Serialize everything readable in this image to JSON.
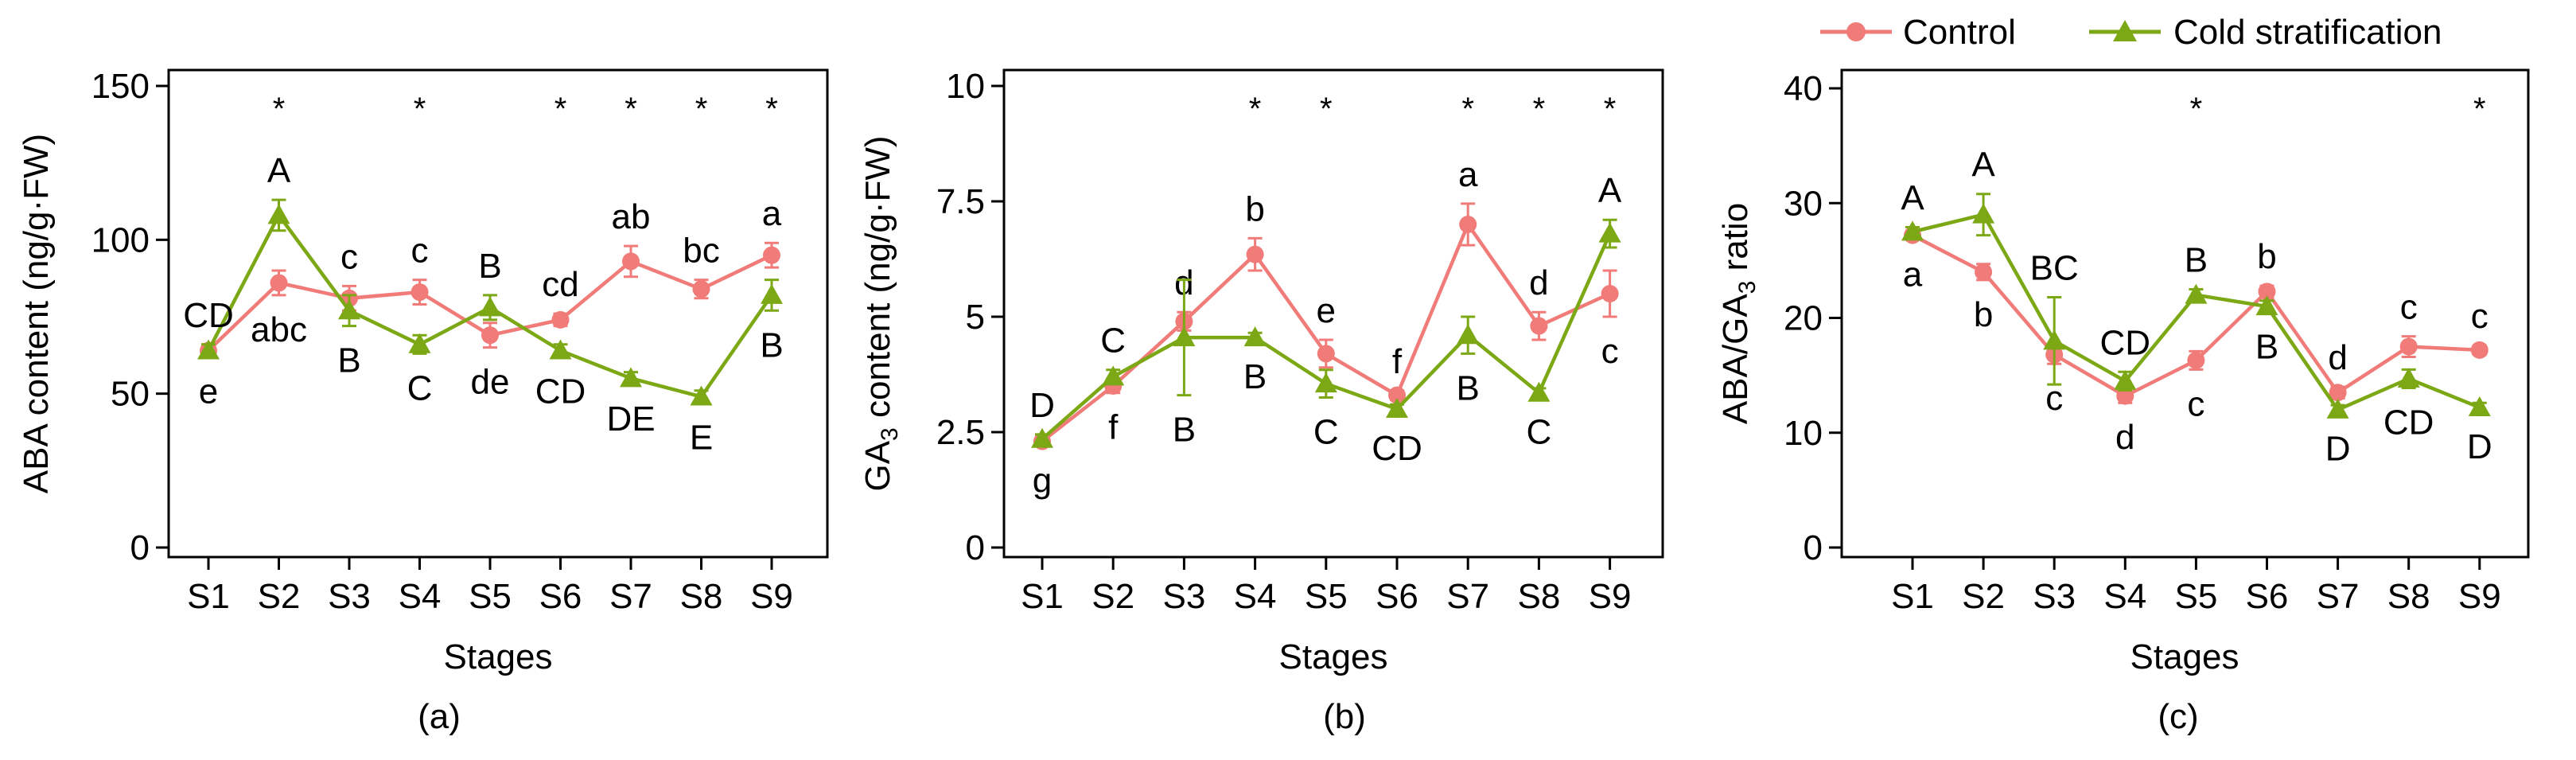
{
  "legend": {
    "position": "top-right",
    "entries": [
      {
        "name": "Control",
        "color": "#f07b78",
        "marker": "circle"
      },
      {
        "name": "Cold stratification",
        "color": "#7ba814",
        "marker": "triangle"
      }
    ]
  },
  "chart_data": [
    {
      "type": "line",
      "panel": "(a)",
      "xlabel": "Stages",
      "ylabel": "ABA content (ng/g·FW)",
      "categories": [
        "S1",
        "S2",
        "S3",
        "S4",
        "S5",
        "S6",
        "S7",
        "S8",
        "S9"
      ],
      "ylim": [
        0,
        150
      ],
      "yticks": [
        0,
        50,
        100,
        150
      ],
      "ytick_labels": [
        "0",
        "50",
        "100",
        "150"
      ],
      "series": [
        {
          "name": "Control",
          "values": [
            64,
            86,
            81,
            83,
            69,
            74,
            93,
            84,
            95
          ],
          "errors": [
            2,
            4,
            4,
            4,
            4,
            2,
            5,
            3,
            4
          ],
          "letters": [
            "e",
            "abc",
            "c",
            "c",
            "de",
            "cd",
            "ab",
            "bc",
            "a"
          ],
          "letter_pos": [
            "below",
            "below",
            "above",
            "above",
            "below",
            "above",
            "above",
            "above",
            "above"
          ]
        },
        {
          "name": "Cold stratification",
          "values": [
            64,
            108,
            77,
            66,
            78,
            64,
            55,
            49,
            82
          ],
          "errors": [
            2,
            5,
            5,
            3,
            4,
            2,
            2,
            2,
            5
          ],
          "letters": [
            "CD",
            "A",
            "B",
            "C",
            "B",
            "CD",
            "DE",
            "E",
            "B"
          ],
          "letter_pos": [
            "above",
            "above",
            "below",
            "below",
            "above",
            "below",
            "below",
            "below",
            "below"
          ]
        }
      ],
      "significance": [
        "",
        "*",
        "",
        "*",
        "",
        "*",
        "*",
        "*",
        "*"
      ]
    },
    {
      "type": "line",
      "panel": "(b)",
      "xlabel": "Stages",
      "ylabel_main": "GA",
      "ylabel_sub": "3",
      "ylabel_rest": " content (ng/g·FW)",
      "categories": [
        "S1",
        "S2",
        "S3",
        "S4",
        "S5",
        "S6",
        "S7",
        "S8",
        "S9"
      ],
      "ylim": [
        0,
        10
      ],
      "yticks": [
        0,
        2.5,
        5,
        7.5,
        10
      ],
      "ytick_labels": [
        "0",
        "2.5",
        "5",
        "7.5",
        "10"
      ],
      "series": [
        {
          "name": "Control",
          "values": [
            2.3,
            3.5,
            4.9,
            6.35,
            4.2,
            3.3,
            7.0,
            4.8,
            5.5
          ],
          "errors": [
            0.1,
            0.15,
            0.2,
            0.35,
            0.3,
            0.1,
            0.45,
            0.3,
            0.5
          ],
          "letters": [
            "g",
            "f",
            "d",
            "b",
            "e",
            "f",
            "a",
            "d",
            "c"
          ],
          "letter_pos": [
            "below",
            "below",
            "above",
            "above",
            "above",
            "above",
            "above",
            "above",
            "below"
          ]
        },
        {
          "name": "Cold stratification",
          "values": [
            2.35,
            3.7,
            4.55,
            4.55,
            3.55,
            3.0,
            4.6,
            3.35,
            6.8
          ],
          "errors": [
            0.1,
            0.15,
            1.25,
            0.1,
            0.3,
            0.1,
            0.4,
            0.1,
            0.3
          ],
          "letters": [
            "D",
            "C",
            "B",
            "B",
            "C",
            "CD",
            "B",
            "C",
            "A"
          ],
          "letter_pos": [
            "above",
            "above",
            "below",
            "below",
            "below",
            "below",
            "below",
            "below",
            "above"
          ]
        }
      ],
      "significance": [
        "",
        "",
        "",
        "*",
        "*",
        "",
        "*",
        "*",
        "*"
      ]
    },
    {
      "type": "line",
      "panel": "(c)",
      "xlabel": "Stages",
      "ylabel_main": "ABA/GA",
      "ylabel_sub": "3",
      "ylabel_rest": " ratio",
      "categories": [
        "S1",
        "S2",
        "S3",
        "S4",
        "S5",
        "S6",
        "S7",
        "S8",
        "S9"
      ],
      "ylim": [
        0,
        40
      ],
      "yticks": [
        0,
        10,
        20,
        30,
        40
      ],
      "ytick_labels": [
        "0",
        "10",
        "20",
        "30",
        "40"
      ],
      "series": [
        {
          "name": "Control",
          "values": [
            27.2,
            24.0,
            16.8,
            13.2,
            16.3,
            22.3,
            13.5,
            17.5,
            17.2
          ],
          "errors": [
            0.4,
            0.7,
            0.8,
            0.6,
            0.8,
            0.5,
            0.5,
            0.9,
            0.4
          ],
          "letters": [
            "a",
            "b",
            "c",
            "d",
            "c",
            "b",
            "d",
            "c",
            "c"
          ],
          "letter_pos": [
            "below",
            "below",
            "below",
            "below",
            "below",
            "above",
            "above",
            "above",
            "above"
          ]
        },
        {
          "name": "Cold stratification",
          "values": [
            27.5,
            29.0,
            18.0,
            14.5,
            22.0,
            21.0,
            12.0,
            14.7,
            12.2
          ],
          "errors": [
            0.4,
            1.8,
            3.8,
            0.8,
            0.5,
            0.5,
            0.4,
            0.8,
            0.4
          ],
          "letters": [
            "A",
            "A",
            "BC",
            "CD",
            "B",
            "B",
            "D",
            "CD",
            "D"
          ],
          "letter_pos": [
            "above",
            "above",
            "above",
            "above",
            "above",
            "below",
            "below",
            "below",
            "below"
          ]
        }
      ],
      "significance": [
        "",
        "",
        "",
        "",
        "*",
        "",
        "",
        "",
        "*"
      ]
    }
  ]
}
